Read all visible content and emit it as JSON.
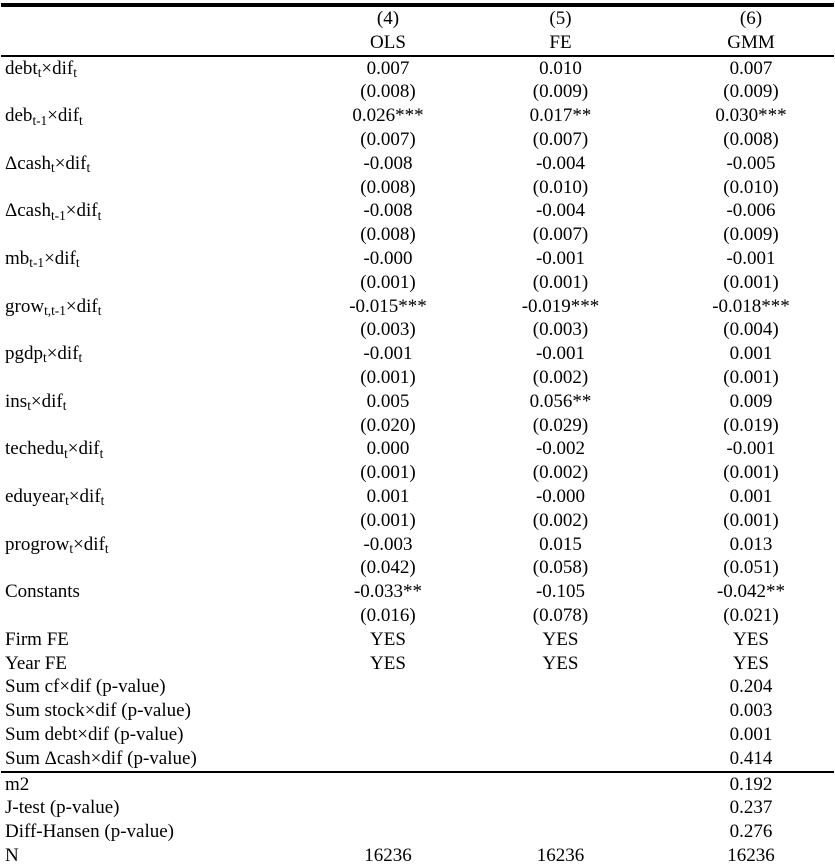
{
  "table": {
    "header": {
      "model_numbers": [
        "(4)",
        "(5)",
        "(6)"
      ],
      "model_types": [
        "OLS",
        "FE",
        "GMM"
      ]
    },
    "coefficients": [
      {
        "label": "debt~t~×dif~t~",
        "estimates": [
          "0.007",
          "0.010",
          "0.007"
        ],
        "std_errors": [
          "(0.008)",
          "(0.009)",
          "(0.009)"
        ]
      },
      {
        "label": "deb~t-1~×dif~t~",
        "estimates": [
          "0.026***",
          "0.017**",
          "0.030***"
        ],
        "std_errors": [
          "(0.007)",
          "(0.007)",
          "(0.008)"
        ]
      },
      {
        "label": "Δcash~t~×dif~t~",
        "estimates": [
          "-0.008",
          "-0.004",
          "-0.005"
        ],
        "std_errors": [
          "(0.008)",
          "(0.010)",
          "(0.010)"
        ]
      },
      {
        "label": "Δcash~t-1~×dif~t~",
        "estimates": [
          "-0.008",
          "-0.004",
          "-0.006"
        ],
        "std_errors": [
          "(0.008)",
          "(0.007)",
          "(0.009)"
        ]
      },
      {
        "label": "mb~t-1~×dif~t~",
        "estimates": [
          "-0.000",
          "-0.001",
          "-0.001"
        ],
        "std_errors": [
          "(0.001)",
          "(0.001)",
          "(0.001)"
        ]
      },
      {
        "label": "grow~t,t-1~×dif~t~",
        "estimates": [
          "-0.015***",
          "-0.019***",
          "-0.018***"
        ],
        "std_errors": [
          "(0.003)",
          "(0.003)",
          "(0.004)"
        ]
      },
      {
        "label": "pgdp~t~×dif~t~",
        "estimates": [
          "-0.001",
          "-0.001",
          "0.001"
        ],
        "std_errors": [
          "(0.001)",
          "(0.002)",
          "(0.001)"
        ]
      },
      {
        "label": "ins~t~×dif~t~",
        "estimates": [
          "0.005",
          "0.056**",
          "0.009"
        ],
        "std_errors": [
          "(0.020)",
          "(0.029)",
          "(0.019)"
        ]
      },
      {
        "label": "techedu~t~×dif~t~",
        "estimates": [
          "0.000",
          "-0.002",
          "-0.001"
        ],
        "std_errors": [
          "(0.001)",
          "(0.002)",
          "(0.001)"
        ]
      },
      {
        "label": "eduyear~t~×dif~t~",
        "estimates": [
          "0.001",
          "-0.000",
          "0.001"
        ],
        "std_errors": [
          "(0.001)",
          "(0.002)",
          "(0.001)"
        ]
      },
      {
        "label": "progrow~t~×dif~t~",
        "estimates": [
          "-0.003",
          "0.015",
          "0.013"
        ],
        "std_errors": [
          "(0.042)",
          "(0.058)",
          "(0.051)"
        ]
      },
      {
        "label": "Constants",
        "estimates": [
          "-0.033**",
          "-0.105",
          "-0.042**"
        ],
        "std_errors": [
          "(0.016)",
          "(0.078)",
          "(0.021)"
        ]
      }
    ],
    "info_rows": [
      {
        "label": "Firm FE",
        "values": [
          "YES",
          "YES",
          "YES"
        ]
      },
      {
        "label": "Year FE",
        "values": [
          "YES",
          "YES",
          "YES"
        ]
      },
      {
        "label": "Sum cf×dif (p-value)",
        "values": [
          "",
          "",
          "0.204"
        ]
      },
      {
        "label": "Sum stock×dif (p-value)",
        "values": [
          "",
          "",
          "0.003"
        ]
      },
      {
        "label": "Sum debt×dif (p-value)",
        "values": [
          "",
          "",
          "0.001"
        ]
      },
      {
        "label": "Sum Δcash×dif (p-value)",
        "values": [
          "",
          "",
          "0.414"
        ]
      }
    ],
    "stats_rows": [
      {
        "label": "m2",
        "values": [
          "",
          "",
          "0.192"
        ]
      },
      {
        "label": "J-test (p-value)",
        "values": [
          "",
          "",
          "0.237"
        ]
      },
      {
        "label": "Diff-Hansen (p-value)",
        "values": [
          "",
          "",
          "0.276"
        ]
      },
      {
        "label": "N",
        "values": [
          "16236",
          "16236",
          "16236"
        ]
      }
    ]
  }
}
